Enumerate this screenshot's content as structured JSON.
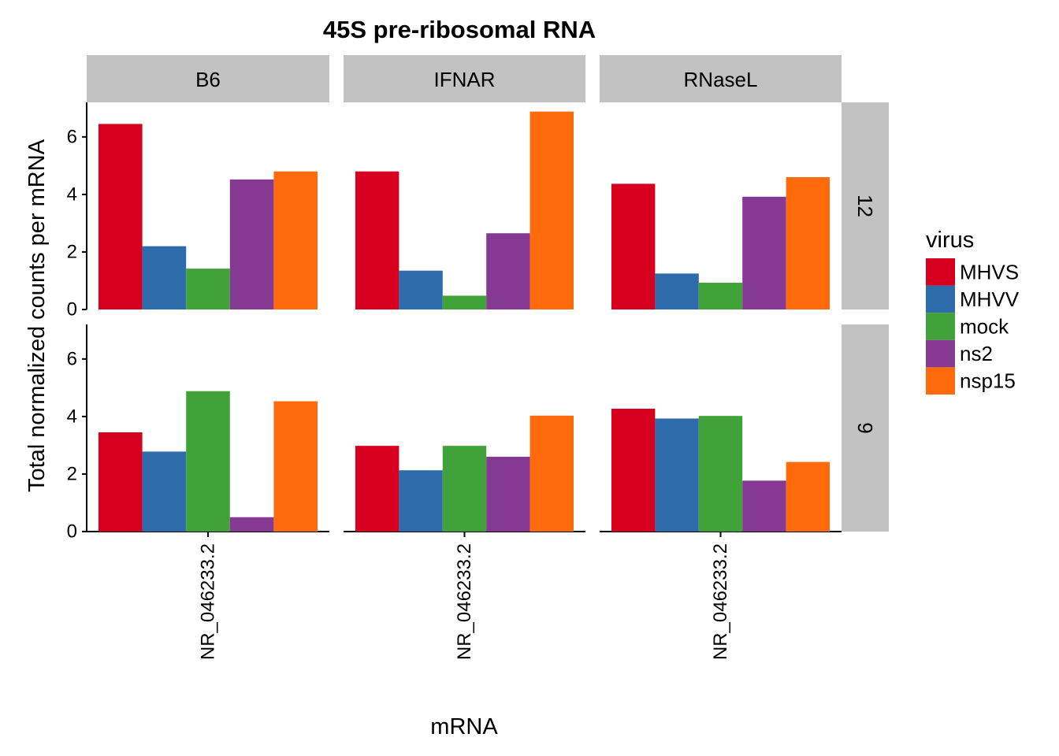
{
  "chart_data": {
    "type": "bar",
    "title": "45S pre-ribosomal RNA",
    "xlabel": "mRNA",
    "ylabel": "Total normalized counts per mRNA",
    "ylim": [
      0,
      7.2
    ],
    "yticks": [
      0,
      2,
      4,
      6
    ],
    "grid": false,
    "legend": {
      "title": "virus",
      "placement": "right"
    },
    "column_facets": [
      "B6",
      "IFNAR",
      "RNaseL"
    ],
    "row_facets": [
      "12",
      "9"
    ],
    "categories": [
      "NR_046233.2"
    ],
    "series": [
      {
        "name": "MHVS",
        "color": "#D7001E"
      },
      {
        "name": "MHVV",
        "color": "#2E6BAA"
      },
      {
        "name": "mock",
        "color": "#40A238"
      },
      {
        "name": "ns2",
        "color": "#853992"
      },
      {
        "name": "nsp15",
        "color": "#FF6A0D"
      }
    ],
    "panels": [
      {
        "row": "12",
        "col": "B6",
        "category": "NR_046233.2",
        "values": [
          6.45,
          2.2,
          1.42,
          4.52,
          4.8
        ]
      },
      {
        "row": "12",
        "col": "IFNAR",
        "category": "NR_046233.2",
        "values": [
          4.8,
          1.35,
          0.48,
          2.65,
          6.88
        ]
      },
      {
        "row": "12",
        "col": "RNaseL",
        "category": "NR_046233.2",
        "values": [
          4.37,
          1.25,
          0.93,
          3.92,
          4.6
        ]
      },
      {
        "row": "9",
        "col": "B6",
        "category": "NR_046233.2",
        "values": [
          3.45,
          2.78,
          4.88,
          0.5,
          4.53
        ]
      },
      {
        "row": "9",
        "col": "IFNAR",
        "category": "NR_046233.2",
        "values": [
          2.98,
          2.13,
          2.98,
          2.6,
          4.03
        ]
      },
      {
        "row": "9",
        "col": "RNaseL",
        "category": "NR_046233.2",
        "values": [
          4.27,
          3.93,
          4.02,
          1.77,
          2.42
        ]
      }
    ]
  }
}
